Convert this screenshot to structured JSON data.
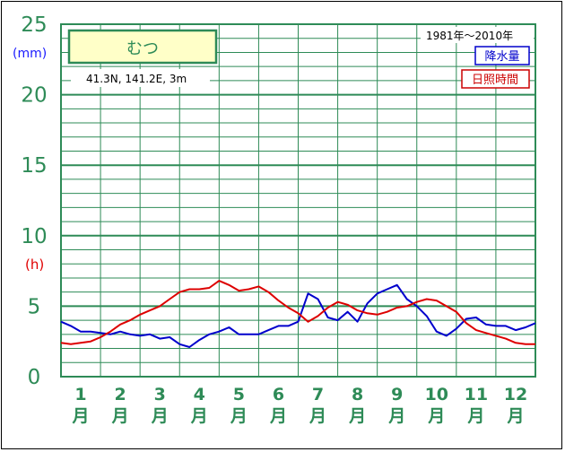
{
  "chart_data": {
    "type": "line",
    "station": "むつ",
    "location": "41.3N,  141.2E,  3m",
    "period": "1981年〜2010年",
    "y_units": {
      "precipitation": "(mm)",
      "sunshine": "(h)"
    },
    "y_ticks": [
      "0",
      "5",
      "10",
      "15",
      "20",
      "25"
    ],
    "ylim": [
      0,
      25
    ],
    "grid": true,
    "legend_position": "top-right",
    "legend": {
      "precipitation": "降水量",
      "sunshine": "日照時間"
    },
    "month_numbers": [
      "1",
      "2",
      "3",
      "4",
      "5",
      "6",
      "7",
      "8",
      "9",
      "10",
      "11",
      "12"
    ],
    "month_suffix": "月",
    "x": [
      0.5,
      0.75,
      1.0,
      1.25,
      1.5,
      1.75,
      2.0,
      2.25,
      2.5,
      2.75,
      3.0,
      3.25,
      3.5,
      3.75,
      4.0,
      4.25,
      4.5,
      4.75,
      5.0,
      5.25,
      5.5,
      5.75,
      6.0,
      6.25,
      6.5,
      6.75,
      7.0,
      7.25,
      7.5,
      7.75,
      8.0,
      8.25,
      8.5,
      8.75,
      9.0,
      9.25,
      9.5,
      9.75,
      10.0,
      10.25,
      10.5,
      10.75,
      11.0,
      11.25,
      11.5,
      11.75,
      12.0,
      12.25,
      12.5
    ],
    "series": [
      {
        "name": "降水量",
        "color": "#0000cc",
        "values": [
          3.9,
          3.6,
          3.2,
          3.2,
          3.1,
          3.0,
          3.2,
          3.0,
          2.9,
          3.0,
          2.7,
          2.8,
          2.3,
          2.1,
          2.6,
          3.0,
          3.2,
          3.5,
          3.0,
          3.0,
          3.0,
          3.3,
          3.6,
          3.6,
          3.9,
          5.9,
          5.5,
          4.2,
          4.0,
          4.6,
          3.9,
          5.2,
          5.9,
          6.2,
          6.5,
          5.5,
          5.0,
          4.3,
          3.2,
          2.9,
          3.4,
          4.1,
          4.2,
          3.7,
          3.6,
          3.6,
          3.3,
          3.5,
          3.8
        ]
      },
      {
        "name": "日照時間",
        "color": "#dd0000",
        "values": [
          2.4,
          2.3,
          2.4,
          2.5,
          2.8,
          3.2,
          3.7,
          4.0,
          4.4,
          4.7,
          5.0,
          5.5,
          6.0,
          6.2,
          6.2,
          6.3,
          6.8,
          6.5,
          6.1,
          6.2,
          6.4,
          6.0,
          5.4,
          4.9,
          4.5,
          3.9,
          4.3,
          4.9,
          5.3,
          5.1,
          4.7,
          4.5,
          4.4,
          4.6,
          4.9,
          5.0,
          5.3,
          5.5,
          5.4,
          5.0,
          4.6,
          3.8,
          3.3,
          3.1,
          2.9,
          2.7,
          2.4,
          2.3,
          2.3
        ]
      }
    ]
  }
}
